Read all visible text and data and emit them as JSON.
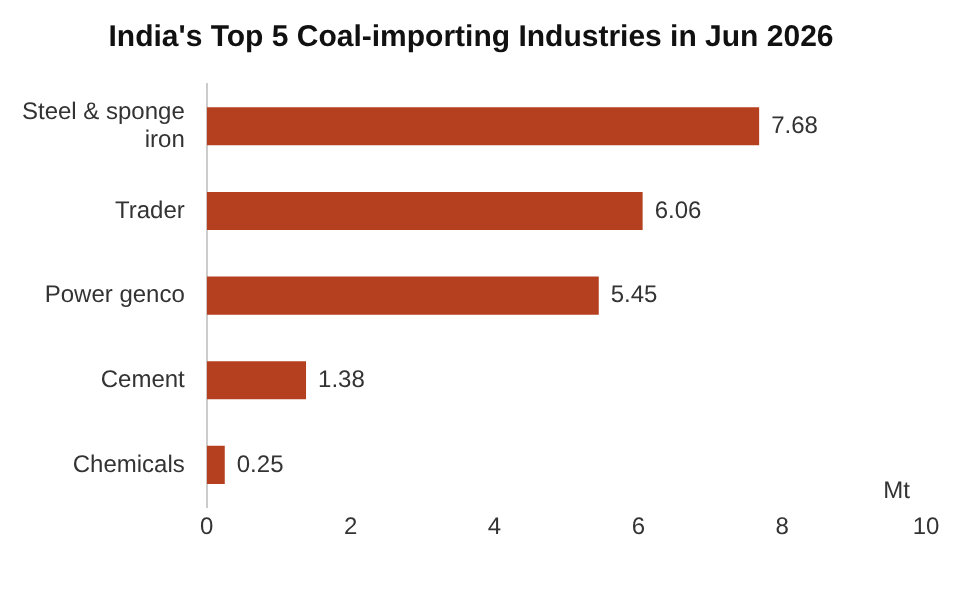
{
  "chart_data": {
    "type": "bar",
    "orientation": "horizontal",
    "title": "India's Top 5 Coal-importing Industries in Jun 2026",
    "xlabel": "Mt",
    "categories": [
      "Steel & sponge iron",
      "Trader",
      "Power genco",
      "Cement",
      "Chemicals"
    ],
    "values": [
      7.68,
      6.06,
      5.45,
      1.38,
      0.25
    ],
    "color": "#b5401f",
    "xlim": [
      0,
      10
    ],
    "xticks": [
      0,
      2,
      4,
      6,
      8,
      10
    ],
    "grid": false,
    "legend": false,
    "data_labels": true
  }
}
